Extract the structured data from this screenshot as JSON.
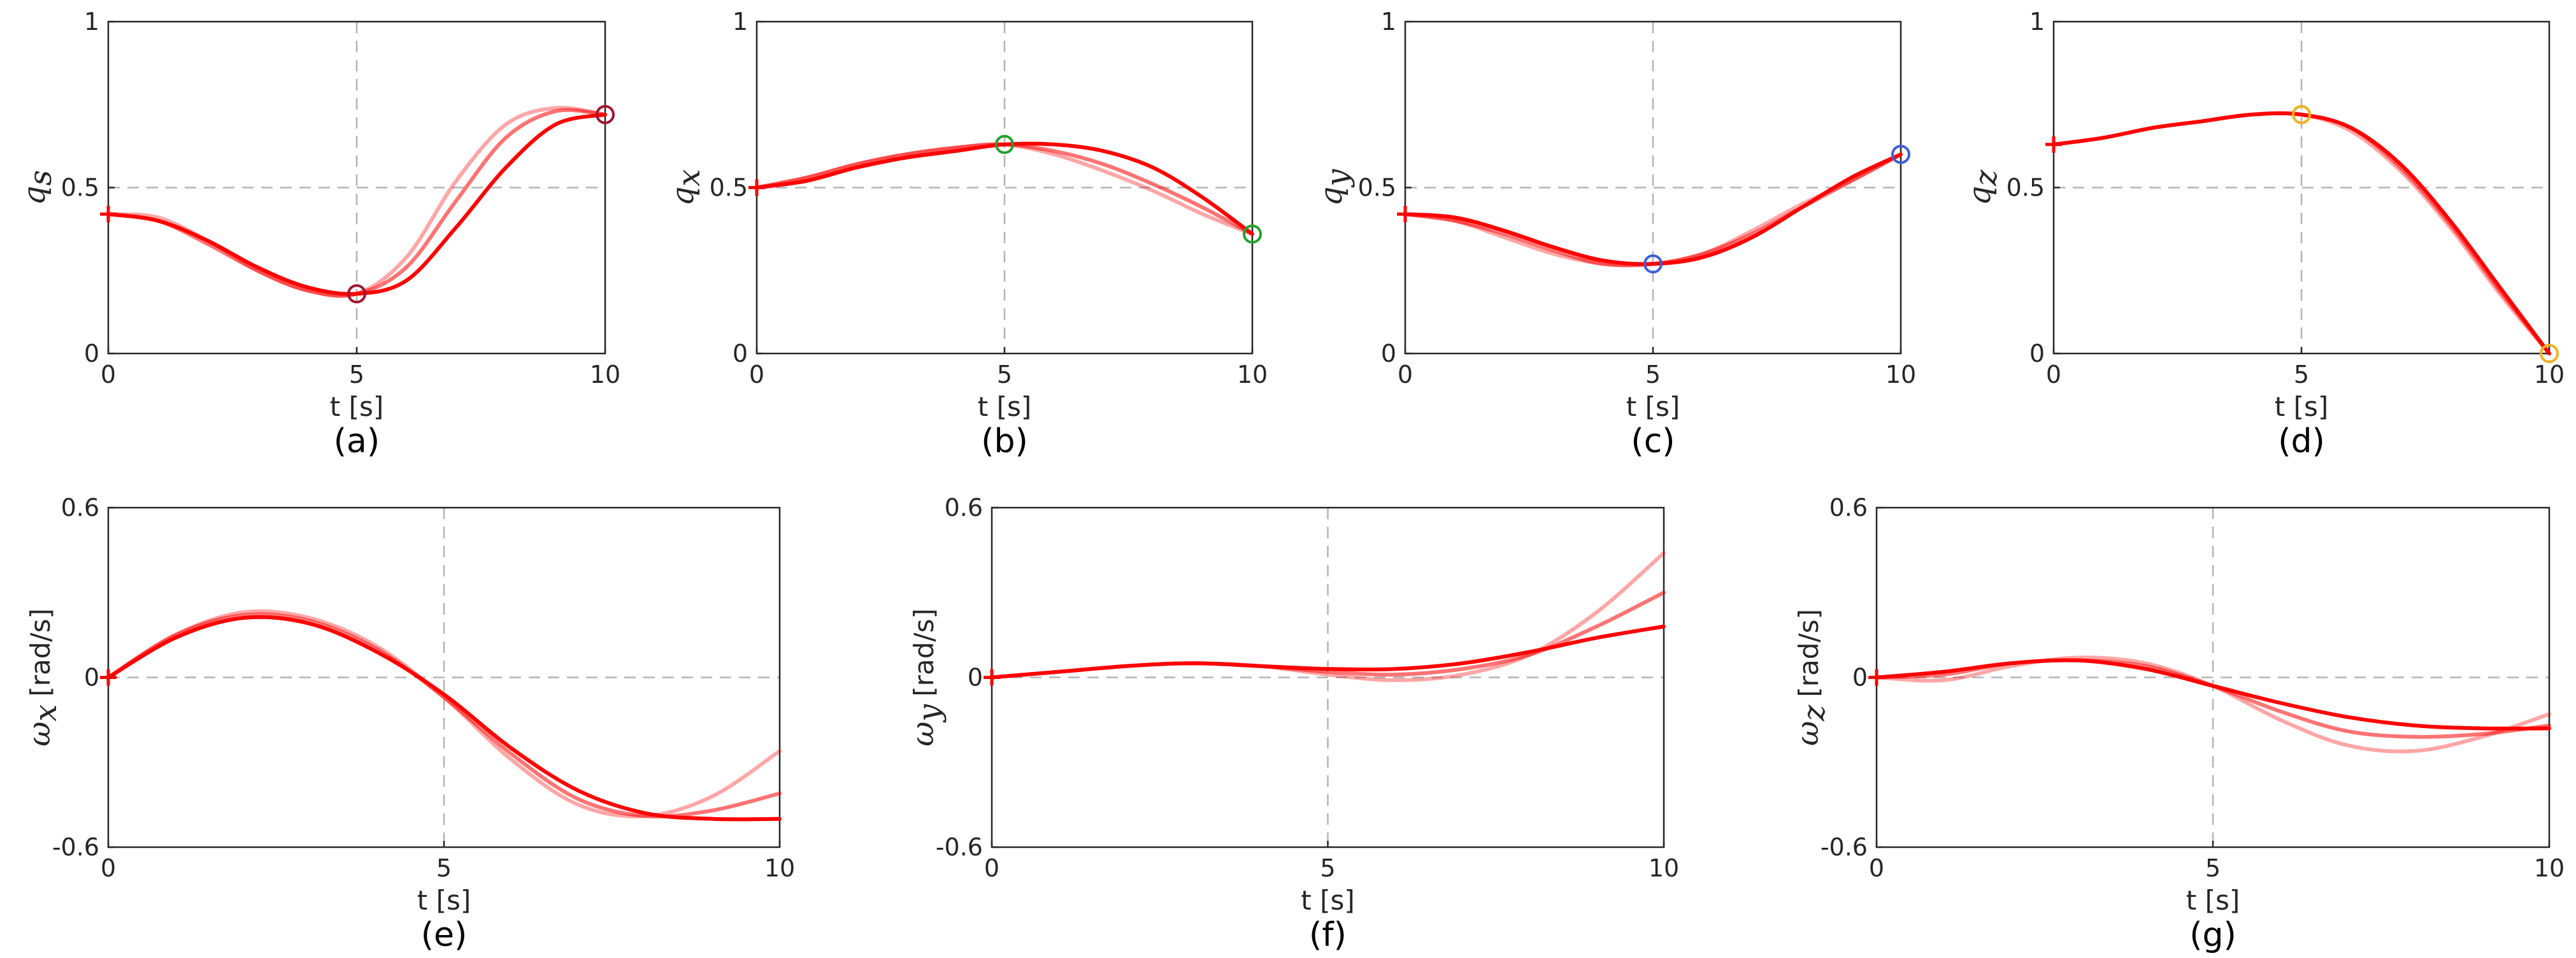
{
  "figure": {
    "background": "#ffffff",
    "line_color": "#ff0000",
    "axis_color": "#262626",
    "grid_color": "#b3b3b3"
  },
  "chart_data": [
    {
      "type": "line",
      "caption": "(a)",
      "xlabel": "t [s]",
      "ylabel": "q",
      "ylabel_sub": "s",
      "xlim": [
        0,
        10
      ],
      "ylim": [
        0,
        1
      ],
      "xticks": [
        "0",
        "5",
        "10"
      ],
      "yticks": [
        "0",
        "0.5",
        "1"
      ],
      "xtick_values": [
        0,
        5,
        10
      ],
      "ytick_values": [
        0,
        0.5,
        1
      ],
      "grid": "dashed lines at t=5 and y=0.5",
      "x": [
        0,
        1,
        2,
        3,
        4,
        5,
        6,
        7,
        8,
        9,
        10
      ],
      "series": [
        {
          "values": [
            0.42,
            0.4,
            0.34,
            0.26,
            0.2,
            0.18,
            0.22,
            0.38,
            0.56,
            0.69,
            0.72
          ],
          "opacity": 1.0
        },
        {
          "values": [
            0.42,
            0.4,
            0.33,
            0.25,
            0.19,
            0.18,
            0.26,
            0.46,
            0.65,
            0.73,
            0.72
          ],
          "opacity": 0.55
        },
        {
          "values": [
            0.42,
            0.41,
            0.34,
            0.25,
            0.19,
            0.18,
            0.29,
            0.52,
            0.69,
            0.74,
            0.72
          ],
          "opacity": 0.35
        }
      ],
      "start_marker": {
        "x": 0,
        "y": 0.42
      },
      "waypoints": [
        {
          "x": 5,
          "y": 0.18,
          "color": "#a2142f"
        },
        {
          "x": 10,
          "y": 0.72,
          "color": "#a2142f"
        }
      ]
    },
    {
      "type": "line",
      "caption": "(b)",
      "xlabel": "t [s]",
      "ylabel": "q",
      "ylabel_sub": "x",
      "xlim": [
        0,
        10
      ],
      "ylim": [
        0,
        1
      ],
      "xticks": [
        "0",
        "5",
        "10"
      ],
      "yticks": [
        "0",
        "0.5",
        "1"
      ],
      "xtick_values": [
        0,
        5,
        10
      ],
      "ytick_values": [
        0,
        0.5,
        1
      ],
      "grid": "dashed lines at t=5 and y=0.5",
      "x": [
        0,
        1,
        2,
        3,
        4,
        5,
        6,
        7,
        8,
        9,
        10
      ],
      "series": [
        {
          "values": [
            0.5,
            0.52,
            0.56,
            0.59,
            0.61,
            0.63,
            0.63,
            0.61,
            0.56,
            0.47,
            0.36
          ],
          "opacity": 1.0
        },
        {
          "values": [
            0.5,
            0.53,
            0.57,
            0.6,
            0.62,
            0.63,
            0.61,
            0.57,
            0.51,
            0.44,
            0.36
          ],
          "opacity": 0.55
        },
        {
          "values": [
            0.5,
            0.53,
            0.57,
            0.6,
            0.62,
            0.63,
            0.6,
            0.55,
            0.49,
            0.42,
            0.36
          ],
          "opacity": 0.35
        }
      ],
      "start_marker": {
        "x": 0,
        "y": 0.5
      },
      "waypoints": [
        {
          "x": 5,
          "y": 0.63,
          "color": "#22a22a"
        },
        {
          "x": 10,
          "y": 0.36,
          "color": "#22a22a"
        }
      ]
    },
    {
      "type": "line",
      "caption": "(c)",
      "xlabel": "t [s]",
      "ylabel": "q",
      "ylabel_sub": "y",
      "xlim": [
        0,
        10
      ],
      "ylim": [
        0,
        1
      ],
      "xticks": [
        "0",
        "5",
        "10"
      ],
      "yticks": [
        "0",
        "0.5",
        "1"
      ],
      "xtick_values": [
        0,
        5,
        10
      ],
      "ytick_values": [
        0,
        0.5,
        1
      ],
      "grid": "dashed lines at t=5 and y=0.5",
      "x": [
        0,
        1,
        2,
        3,
        4,
        5,
        6,
        7,
        8,
        9,
        10
      ],
      "series": [
        {
          "values": [
            0.42,
            0.41,
            0.37,
            0.32,
            0.28,
            0.27,
            0.29,
            0.35,
            0.44,
            0.53,
            0.6
          ],
          "opacity": 1.0
        },
        {
          "values": [
            0.42,
            0.4,
            0.36,
            0.31,
            0.27,
            0.27,
            0.3,
            0.36,
            0.44,
            0.52,
            0.6
          ],
          "opacity": 0.55
        },
        {
          "values": [
            0.42,
            0.4,
            0.35,
            0.3,
            0.27,
            0.27,
            0.3,
            0.37,
            0.45,
            0.52,
            0.6
          ],
          "opacity": 0.35
        }
      ],
      "start_marker": {
        "x": 0,
        "y": 0.42
      },
      "waypoints": [
        {
          "x": 5,
          "y": 0.27,
          "color": "#3d5fd6"
        },
        {
          "x": 10,
          "y": 0.6,
          "color": "#3d5fd6"
        }
      ]
    },
    {
      "type": "line",
      "caption": "(d)",
      "xlabel": "t [s]",
      "ylabel": "q",
      "ylabel_sub": "z",
      "xlim": [
        0,
        10
      ],
      "ylim": [
        0,
        1
      ],
      "xticks": [
        "0",
        "5",
        "10"
      ],
      "yticks": [
        "0",
        "0.5",
        "1"
      ],
      "xtick_values": [
        0,
        5,
        10
      ],
      "ytick_values": [
        0,
        0.5,
        1
      ],
      "grid": "dashed lines at t=5 and y=0.5",
      "x": [
        0,
        1,
        2,
        3,
        4,
        5,
        6,
        7,
        8,
        9,
        10
      ],
      "series": [
        {
          "values": [
            0.63,
            0.65,
            0.68,
            0.7,
            0.72,
            0.72,
            0.68,
            0.57,
            0.4,
            0.2,
            0.0
          ],
          "opacity": 1.0
        },
        {
          "values": [
            0.63,
            0.65,
            0.68,
            0.7,
            0.72,
            0.72,
            0.68,
            0.56,
            0.39,
            0.19,
            0.0
          ],
          "opacity": 0.55
        },
        {
          "values": [
            0.63,
            0.65,
            0.68,
            0.7,
            0.72,
            0.72,
            0.67,
            0.55,
            0.38,
            0.18,
            0.0
          ],
          "opacity": 0.35
        }
      ],
      "start_marker": {
        "x": 0,
        "y": 0.63
      },
      "waypoints": [
        {
          "x": 5,
          "y": 0.72,
          "color": "#edb120"
        },
        {
          "x": 10,
          "y": 0.0,
          "color": "#edb120"
        }
      ]
    },
    {
      "type": "line",
      "caption": "(e)",
      "xlabel": "t [s]",
      "ylabel": "ω",
      "ylabel_sub": "x",
      "ylabel_unit": "[rad/s]",
      "xlim": [
        0,
        10
      ],
      "ylim": [
        -0.6,
        0.6
      ],
      "xticks": [
        "0",
        "5",
        "10"
      ],
      "yticks": [
        "-0.6",
        "0",
        "0.6"
      ],
      "xtick_values": [
        0,
        5,
        10
      ],
      "ytick_values": [
        -0.6,
        0,
        0.6
      ],
      "grid": "dashed lines at t=5 and y=0",
      "x": [
        0,
        1,
        2,
        3,
        4,
        5,
        6,
        7,
        8,
        9,
        10
      ],
      "series": [
        {
          "values": [
            0.0,
            0.14,
            0.21,
            0.19,
            0.09,
            -0.06,
            -0.25,
            -0.4,
            -0.48,
            -0.5,
            -0.5
          ],
          "opacity": 1.0
        },
        {
          "values": [
            0.0,
            0.15,
            0.22,
            0.2,
            0.1,
            -0.07,
            -0.27,
            -0.43,
            -0.49,
            -0.47,
            -0.41
          ],
          "opacity": 0.55
        },
        {
          "values": [
            0.0,
            0.15,
            0.23,
            0.21,
            0.11,
            -0.07,
            -0.29,
            -0.45,
            -0.49,
            -0.42,
            -0.26
          ],
          "opacity": 0.35
        }
      ],
      "start_marker": {
        "x": 0,
        "y": 0.0
      }
    },
    {
      "type": "line",
      "caption": "(f)",
      "xlabel": "t [s]",
      "ylabel": "ω",
      "ylabel_sub": "y",
      "ylabel_unit": "[rad/s]",
      "xlim": [
        0,
        10
      ],
      "ylim": [
        -0.6,
        0.6
      ],
      "xticks": [
        "0",
        "5",
        "10"
      ],
      "yticks": [
        "-0.6",
        "0",
        "0.6"
      ],
      "xtick_values": [
        0,
        5,
        10
      ],
      "ytick_values": [
        -0.6,
        0,
        0.6
      ],
      "grid": "dashed lines at t=5 and y=0",
      "x": [
        0,
        1,
        2,
        3,
        4,
        5,
        6,
        7,
        8,
        9,
        10
      ],
      "series": [
        {
          "values": [
            0.0,
            0.02,
            0.04,
            0.05,
            0.04,
            0.03,
            0.03,
            0.05,
            0.09,
            0.14,
            0.18
          ],
          "opacity": 1.0
        },
        {
          "values": [
            0.0,
            0.02,
            0.04,
            0.05,
            0.04,
            0.02,
            0.01,
            0.03,
            0.08,
            0.18,
            0.3
          ],
          "opacity": 0.55
        },
        {
          "values": [
            0.0,
            0.02,
            0.04,
            0.05,
            0.04,
            0.01,
            -0.01,
            0.01,
            0.08,
            0.23,
            0.44
          ],
          "opacity": 0.35
        }
      ],
      "start_marker": {
        "x": 0,
        "y": 0.0
      }
    },
    {
      "type": "line",
      "caption": "(g)",
      "xlabel": "t [s]",
      "ylabel": "ω",
      "ylabel_sub": "z",
      "ylabel_unit": "[rad/s]",
      "xlim": [
        0,
        10
      ],
      "ylim": [
        -0.6,
        0.6
      ],
      "xticks": [
        "0",
        "5",
        "10"
      ],
      "yticks": [
        "-0.6",
        "0",
        "0.6"
      ],
      "xtick_values": [
        0,
        5,
        10
      ],
      "ytick_values": [
        -0.6,
        0,
        0.6
      ],
      "grid": "dashed lines at t=5 and y=0",
      "x": [
        0,
        1,
        2,
        3,
        4,
        5,
        6,
        7,
        8,
        9,
        10
      ],
      "series": [
        {
          "values": [
            0.0,
            0.02,
            0.05,
            0.06,
            0.03,
            -0.03,
            -0.09,
            -0.14,
            -0.17,
            -0.18,
            -0.18
          ],
          "opacity": 1.0
        },
        {
          "values": [
            0.0,
            0.01,
            0.05,
            0.06,
            0.04,
            -0.03,
            -0.12,
            -0.19,
            -0.21,
            -0.2,
            -0.17
          ],
          "opacity": 0.55
        },
        {
          "values": [
            0.0,
            -0.01,
            0.04,
            0.07,
            0.05,
            -0.03,
            -0.15,
            -0.24,
            -0.26,
            -0.21,
            -0.13
          ],
          "opacity": 0.35
        }
      ],
      "start_marker": {
        "x": 0,
        "y": 0.0
      }
    }
  ]
}
